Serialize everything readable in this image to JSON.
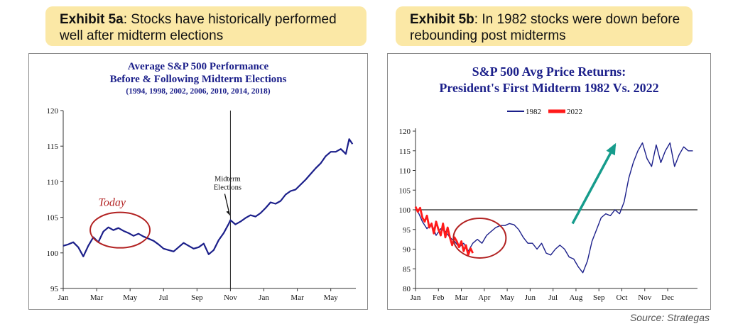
{
  "callout_a": {
    "label": "Exhibit 5a",
    "text": ": Stocks have historically performed well after midterm elections"
  },
  "callout_b": {
    "label": "Exhibit 5b",
    "text": ": In 1982 stocks were down before rebounding post midterms"
  },
  "source": "Source: Strategas",
  "colors": {
    "navy": "#1b1f8a",
    "red": "#ff1a1a",
    "annotation_red": "#b22222",
    "arrow_teal": "#169c8c",
    "callout_bg": "#fbe8a6"
  },
  "chart_data": [
    {
      "type": "line",
      "title": "Average S&P 500 Performance",
      "subtitle": "Before & Following Midterm Elections",
      "note": "(1994, 1998, 2002, 2006, 2010, 2014, 2018)",
      "ylim": [
        95,
        120
      ],
      "yticks": [
        95,
        100,
        105,
        110,
        115,
        120
      ],
      "x_tick_labels": [
        "Jan",
        "Mar",
        "May",
        "Jul",
        "Sep",
        "Nov",
        "Jan",
        "Mar",
        "May"
      ],
      "xlim_months": [
        0,
        17.5
      ],
      "series": [
        {
          "x": [
            0,
            0.3,
            0.6,
            0.9,
            1.2,
            1.5,
            1.8,
            2.1,
            2.4,
            2.7,
            3.0,
            3.3,
            3.6,
            3.9,
            4.2,
            4.5,
            4.8,
            5.1,
            5.4,
            5.7,
            6.0,
            6.3,
            6.6,
            6.9,
            7.2,
            7.5,
            7.8,
            8.1,
            8.4,
            8.7,
            9.0,
            9.3,
            9.6,
            9.9,
            10.0,
            10.3,
            10.6,
            10.9,
            11.2,
            11.5,
            11.8,
            12.1,
            12.4,
            12.7,
            13.0,
            13.3,
            13.6,
            13.9,
            14.2,
            14.5,
            14.8,
            15.1,
            15.4,
            15.7,
            16.0,
            16.3,
            16.6,
            16.9,
            17.1,
            17.3
          ],
          "values": [
            101,
            101.2,
            101.5,
            100.8,
            99.5,
            101,
            102.2,
            101.5,
            103,
            103.6,
            103.2,
            103.5,
            103.1,
            102.8,
            102.4,
            102.7,
            102.3,
            102,
            101.7,
            101.2,
            100.6,
            100.4,
            100.2,
            100.8,
            101.4,
            101,
            100.6,
            100.8,
            101.3,
            99.8,
            100.4,
            101.8,
            102.8,
            104.1,
            104.6,
            104,
            104.4,
            104.9,
            105.3,
            105.1,
            105.6,
            106.3,
            107.1,
            106.9,
            107.3,
            108.2,
            108.7,
            108.9,
            109.6,
            110.3,
            111.1,
            111.9,
            112.6,
            113.6,
            114.2,
            114.2,
            114.6,
            113.9,
            116,
            115.3
          ]
        }
      ],
      "annotations": [
        {
          "text": "Today"
        },
        {
          "text": "Midterm",
          "text2": "Elections",
          "x": 10
        }
      ]
    },
    {
      "type": "line",
      "title": "S&P 500 Avg Price Returns:",
      "subtitle": "President's First Midterm 1982 Vs. 2022",
      "ylim": [
        80,
        120
      ],
      "yticks": [
        80,
        85,
        90,
        95,
        100,
        105,
        110,
        115,
        120
      ],
      "x_tick_labels": [
        "Jan",
        "Feb",
        "Mar",
        "Apr",
        "May",
        "Jun",
        "Jul",
        "Aug",
        "Sep",
        "Oct",
        "Nov",
        "Dec"
      ],
      "xlim_months": [
        0,
        12.3
      ],
      "reference_line": 100,
      "legend": [
        "1982",
        "2022"
      ],
      "series": [
        {
          "name": "1982",
          "x": [
            0,
            0.15,
            0.3,
            0.5,
            0.7,
            0.9,
            1.1,
            1.3,
            1.5,
            1.7,
            1.9,
            2.1,
            2.3,
            2.5,
            2.7,
            2.9,
            3.1,
            3.3,
            3.5,
            3.7,
            3.9,
            4.1,
            4.3,
            4.5,
            4.7,
            4.9,
            5.1,
            5.3,
            5.5,
            5.7,
            5.9,
            6.1,
            6.3,
            6.5,
            6.7,
            6.9,
            7.1,
            7.3,
            7.5,
            7.7,
            7.9,
            8.1,
            8.3,
            8.5,
            8.7,
            8.9,
            9.1,
            9.3,
            9.5,
            9.7,
            9.9,
            10.1,
            10.3,
            10.5,
            10.7,
            10.9,
            11.1,
            11.3,
            11.5,
            11.7,
            11.9,
            12.1
          ],
          "values": [
            100.5,
            99,
            97,
            95.2,
            96.5,
            93.5,
            95.2,
            94.5,
            93,
            92,
            90.5,
            91.5,
            89.5,
            91.5,
            92.5,
            91.5,
            93.5,
            94.5,
            95.5,
            96,
            96,
            96.5,
            96.2,
            95,
            93,
            91.5,
            91.5,
            90,
            91.5,
            89,
            88.5,
            90,
            91,
            90,
            88,
            87.5,
            85.5,
            84,
            87,
            92,
            95,
            98,
            99,
            98.5,
            100,
            99,
            102,
            108,
            112,
            115,
            117,
            113,
            111,
            116.5,
            112,
            115,
            117,
            111,
            114,
            116,
            115,
            115
          ]
        },
        {
          "name": "2022",
          "x": [
            0,
            0.1,
            0.2,
            0.3,
            0.4,
            0.5,
            0.6,
            0.7,
            0.8,
            0.9,
            1.0,
            1.1,
            1.2,
            1.3,
            1.4,
            1.5,
            1.6,
            1.7,
            1.8,
            1.9,
            2.0,
            2.1,
            2.2,
            2.3,
            2.4,
            2.5
          ],
          "values": [
            100.8,
            99.5,
            100.5,
            98,
            97,
            98.5,
            95.5,
            96.5,
            94,
            97,
            95,
            93.5,
            96.5,
            93,
            95.5,
            93,
            91,
            93,
            92,
            90.5,
            92,
            89.5,
            91,
            88.5,
            90.2,
            89
          ]
        }
      ],
      "annotations": [
        {
          "type": "arrow"
        }
      ]
    }
  ]
}
